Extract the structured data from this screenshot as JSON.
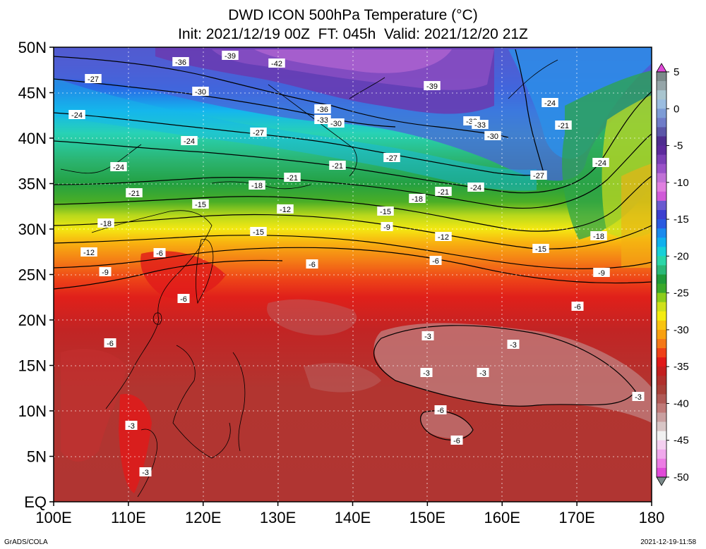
{
  "title": {
    "line1": "DWD ICON 500hPa Temperature (°C)",
    "line2": "Init: 2021/12/19 00Z  FT: 045h  Valid: 2021/12/20 21Z"
  },
  "axes": {
    "lat_labels": [
      "EQ",
      "5N",
      "10N",
      "15N",
      "20N",
      "25N",
      "30N",
      "35N",
      "40N",
      "45N",
      "50N"
    ],
    "lat_values": [
      0,
      5,
      10,
      15,
      20,
      25,
      30,
      35,
      40,
      45,
      50
    ],
    "lon_labels": [
      "100E",
      "110E",
      "120E",
      "130E",
      "140E",
      "150E",
      "160E",
      "170E",
      "180"
    ],
    "lon_values": [
      100,
      110,
      120,
      130,
      140,
      150,
      160,
      170,
      180
    ]
  },
  "colorbar": {
    "labels": [
      "5",
      "0",
      "-5",
      "-10",
      "-15",
      "-20",
      "-25",
      "-30",
      "-35",
      "-40",
      "-45",
      "-50"
    ],
    "values": [
      5,
      0,
      -5,
      -10,
      -15,
      -20,
      -25,
      -30,
      -35,
      -40,
      -45,
      -50
    ],
    "range": [
      -50,
      5
    ],
    "colors": [
      "#7b8a8a",
      "#95a5a8",
      "#a9c5cf",
      "#9bbde0",
      "#7d9cd6",
      "#6f7cc8",
      "#5b56a8",
      "#4e2d8f",
      "#5c2a9c",
      "#7a3fb5",
      "#9a52c8",
      "#c071d6",
      "#e07fe0",
      "#d05ad8",
      "#6a5ad0",
      "#3b3fd0",
      "#2a5ae0",
      "#1a8aee",
      "#10b0ee",
      "#18d0d8",
      "#2ad6a8",
      "#2ab878",
      "#1f9a3a",
      "#3aa82a",
      "#8ccc1a",
      "#cfe01a",
      "#f4ec10",
      "#f8c410",
      "#f8a010",
      "#f47818",
      "#ee4018",
      "#e01818",
      "#c21e1e",
      "#b0302c",
      "#a84038",
      "#b05a56",
      "#c07a78",
      "#c9a0a0",
      "#d8c6c6",
      "#f0f0f0",
      "#f4d0f0",
      "#f0a8ec",
      "#ec7ce4",
      "#e04ad8"
    ]
  },
  "contour_labels": [
    "-39",
    "-36",
    "-42",
    "-27",
    "-30",
    "-39",
    "-24",
    "-36",
    "-33",
    "-30",
    "-33",
    "-33",
    "-30",
    "-24",
    "-21",
    "-27",
    "-24",
    "-27",
    "-24",
    "-21",
    "-24",
    "-27",
    "-18",
    "-21",
    "-15",
    "-18",
    "-21",
    "-24",
    "-21",
    "-18",
    "-18",
    "-15",
    "-12",
    "-15",
    "-9",
    "-9",
    "-12",
    "-12",
    "-15",
    "-12",
    "-6",
    "-9",
    "-6",
    "-6",
    "-9",
    "-6",
    "-6",
    "-6",
    "-3",
    "-3",
    "-3",
    "-3",
    "-3",
    "-3",
    "-3",
    "-6",
    "-6",
    "-3"
  ],
  "footer": {
    "left": "GrADS/COLA",
    "right": "2021-12-19-11:58"
  }
}
